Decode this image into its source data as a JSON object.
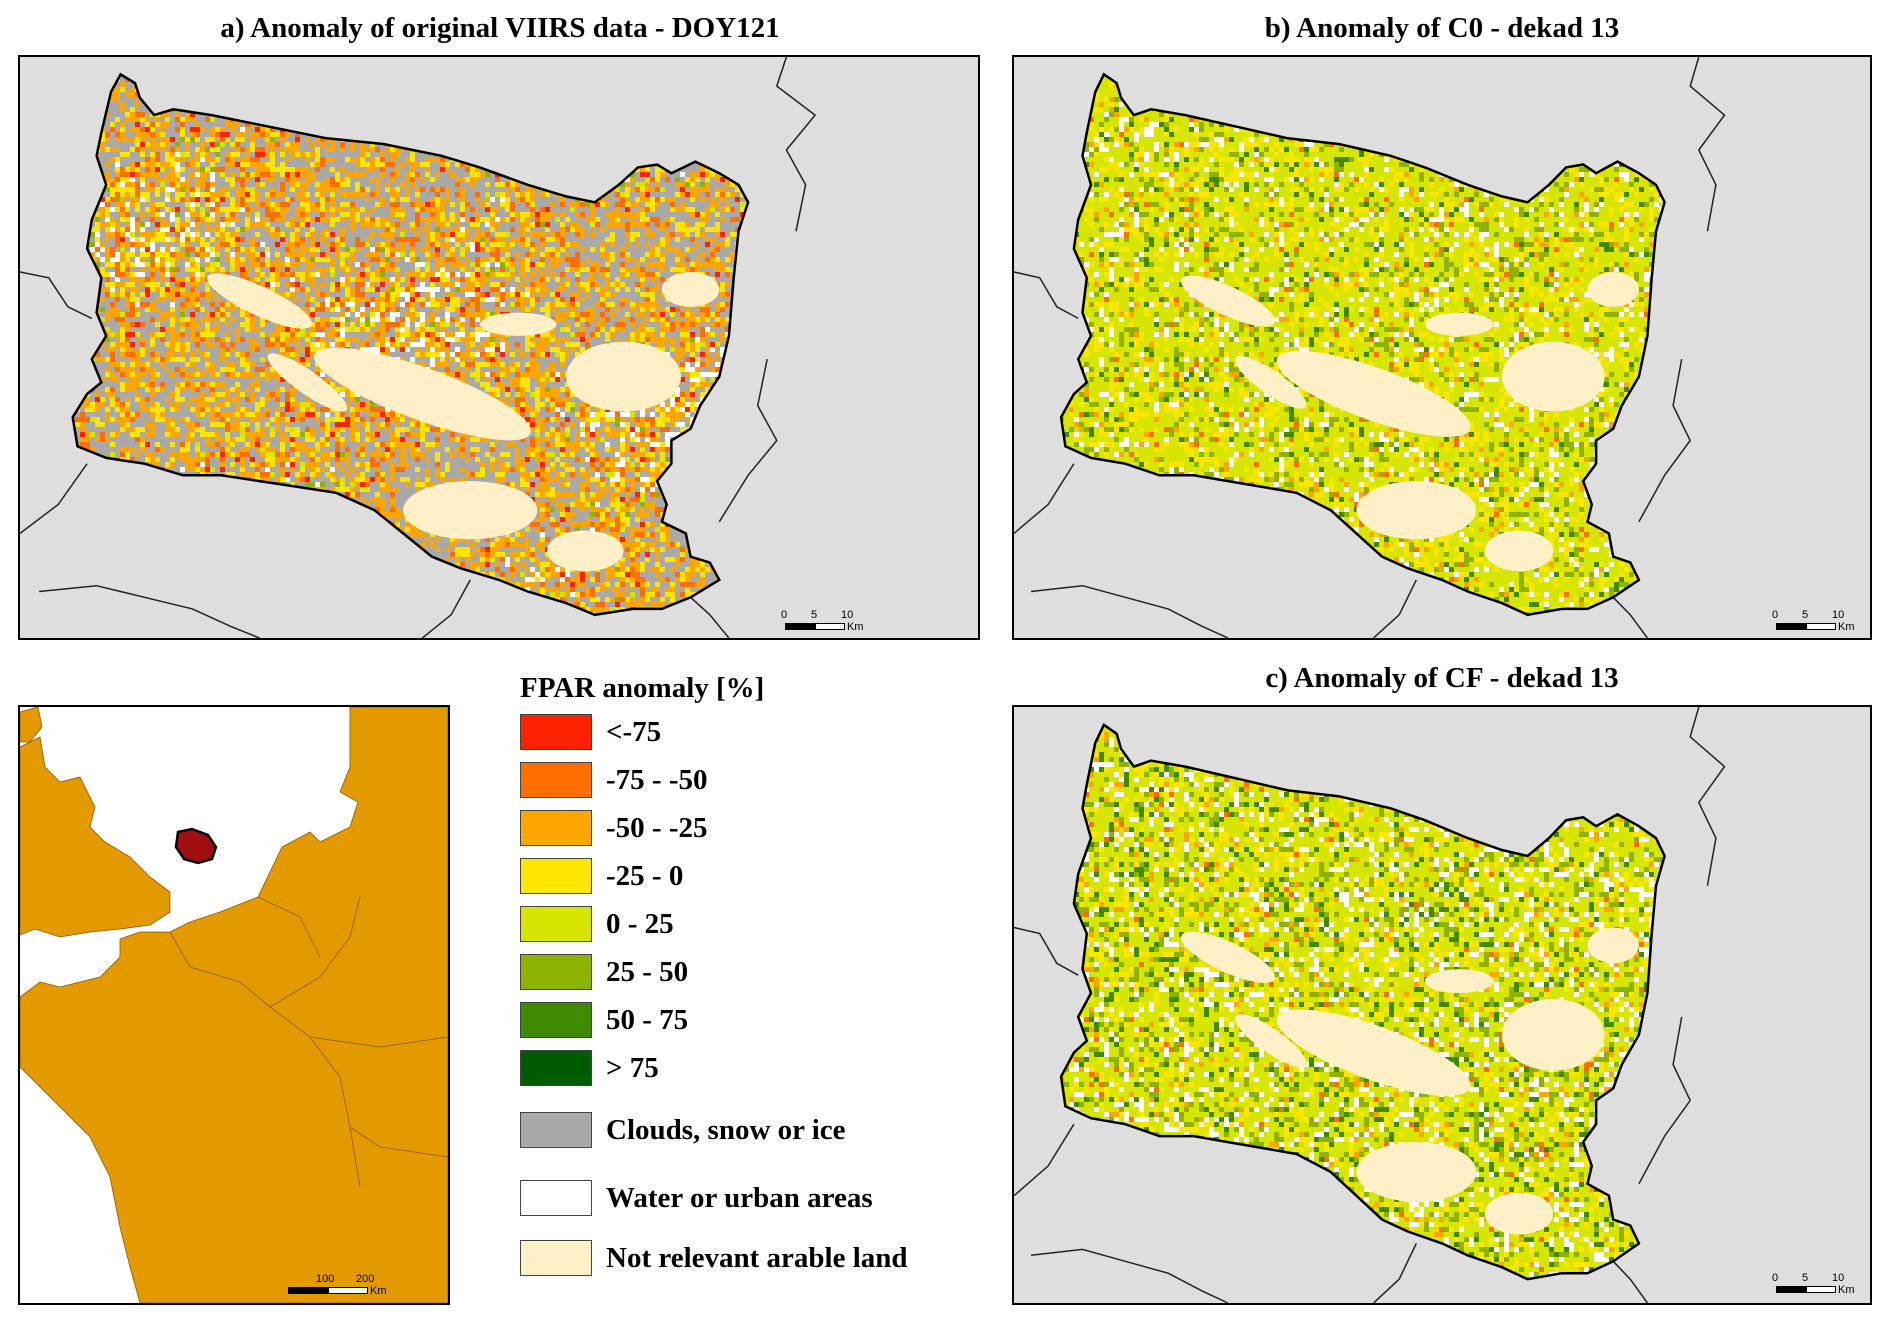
{
  "panels": [
    {
      "id": "a",
      "title": "a) Anomaly of original VIIRS data - DOY121",
      "mode": "viirs"
    },
    {
      "id": "b",
      "title": "b) Anomaly of C0 - dekad 13",
      "mode": "c0"
    },
    {
      "id": "c",
      "title": "c) Anomaly of CF - dekad 13",
      "mode": "cf"
    }
  ],
  "scalebar": {
    "ticks": [
      "0",
      "5",
      "10"
    ],
    "unit": "Km"
  },
  "locator": {
    "ticks": [
      "100",
      "200"
    ],
    "unit": "Km"
  },
  "legend": {
    "title": "FPAR anomaly [%]",
    "items": [
      {
        "label": "<-75",
        "color": "#ff2200"
      },
      {
        "label": "-75 - -50",
        "color": "#ff6e00"
      },
      {
        "label": "-50 - -25",
        "color": "#ffa500"
      },
      {
        "label": "-25 - 0",
        "color": "#ffe600"
      },
      {
        "label": "0 - 25",
        "color": "#d6e600"
      },
      {
        "label": "25 - 50",
        "color": "#8db300"
      },
      {
        "label": "50 - 75",
        "color": "#3f8a00"
      },
      {
        "label": "> 75",
        "color": "#005c00"
      },
      {
        "label": "Clouds, snow or ice",
        "color": "#a9a9a9"
      },
      {
        "label": "Water or urban areas",
        "color": "#ffffff"
      },
      {
        "label": "Not relevant arable land",
        "color": "#fff0c8"
      }
    ]
  },
  "colors": {
    "background": "#dedede",
    "outside": "#e0e0e0",
    "land": "#e39a00",
    "region": "#a01010",
    "border": "#000000"
  }
}
